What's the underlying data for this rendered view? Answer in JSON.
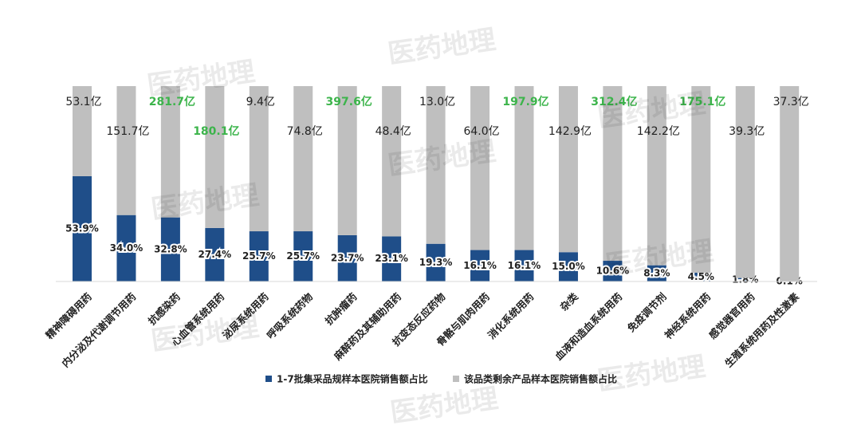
{
  "chart_data": {
    "type": "stacked_bar",
    "categories": [
      "精神障碍用药",
      "内分泌及代谢调节用药",
      "抗感染药",
      "心血管系统用药",
      "泌尿系统用药",
      "呼吸系统药物",
      "抗肿瘤药",
      "麻醉药及其辅助用药",
      "抗变态反应药物",
      "骨骼与肌肉用药",
      "消化系统用药",
      "杂类",
      "血液和造血系统用药",
      "免疫调节剂",
      "神经系统用药",
      "感觉器官用药",
      "生殖系统用药及性激素"
    ],
    "series": [
      {
        "name": "1-7批集采品规样本医院销售额占比",
        "color": "#1f4e89",
        "values": [
          53.9,
          34.0,
          32.8,
          27.4,
          25.7,
          25.7,
          23.7,
          23.1,
          19.3,
          16.1,
          16.1,
          15.0,
          10.6,
          8.3,
          4.5,
          1.8,
          0.1
        ],
        "value_labels": [
          "53.9%",
          "34.0%",
          "32.8%",
          "27.4%",
          "25.7%",
          "25.7%",
          "23.7%",
          "23.1%",
          "19.3%",
          "16.1%",
          "16.1%",
          "15.0%",
          "10.6%",
          "8.3%",
          "4.5%",
          "1.8%",
          "0.1%"
        ]
      },
      {
        "name": "该品类剩余产品样本医院销售额占比",
        "color": "#bfbfbf",
        "values": [
          46.1,
          66.0,
          67.2,
          72.6,
          74.3,
          74.3,
          76.3,
          76.9,
          80.7,
          83.9,
          83.9,
          85.0,
          89.4,
          91.7,
          95.5,
          98.2,
          99.9
        ]
      }
    ],
    "annotations": [
      "53.1亿",
      "151.7亿",
      "281.7亿",
      "180.1亿",
      "9.4亿",
      "74.8亿",
      "397.6亿",
      "48.4亿",
      "13.0亿",
      "64.0亿",
      "197.9亿",
      "142.9亿",
      "312.4亿",
      "142.2亿",
      "175.1亿",
      "39.3亿",
      "37.3亿"
    ],
    "annotation_colors": [
      "#222222",
      "#222222",
      "#3cb44b",
      "#3cb44b",
      "#222222",
      "#222222",
      "#3cb44b",
      "#222222",
      "#222222",
      "#222222",
      "#3cb44b",
      "#222222",
      "#3cb44b",
      "#222222",
      "#3cb44b",
      "#222222",
      "#222222"
    ],
    "ylim": [
      0,
      100
    ],
    "legend": "bottom",
    "watermark": "医药地理"
  }
}
